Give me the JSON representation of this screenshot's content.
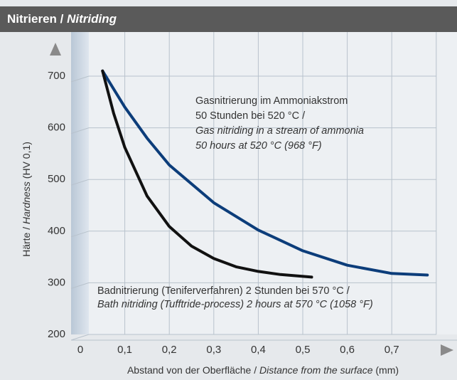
{
  "chart_data": {
    "type": "line",
    "title": {
      "de": "Nitrieren /",
      "en": "Nitriding"
    },
    "x_label": {
      "de": "Abstand von der Oberfläche /",
      "en": "Distance from the surface",
      "unit": "(mm)"
    },
    "y_label": {
      "de": "Härte /",
      "en": "Hardness",
      "unit": "(HV 0,1)"
    },
    "xlim": [
      0,
      0.8
    ],
    "ylim": [
      200,
      700
    ],
    "xticks": [
      0,
      {
        "value": 0.1,
        "label": "0,1"
      },
      {
        "value": 0.2,
        "label": "0,2"
      },
      {
        "value": 0.3,
        "label": "0,3"
      },
      {
        "value": 0.4,
        "label": "0,4"
      },
      {
        "value": 0.5,
        "label": "0,5"
      },
      {
        "value": 0.6,
        "label": "0,6"
      },
      {
        "value": 0.7,
        "label": "0,7"
      }
    ],
    "yticks": [
      200,
      300,
      400,
      500,
      600,
      700
    ],
    "grid": true,
    "series": [
      {
        "color": "#0c3d7a",
        "x": [
          0.05,
          0.1,
          0.15,
          0.2,
          0.3,
          0.4,
          0.5,
          0.6,
          0.7,
          0.78
        ],
        "values": [
          710,
          640,
          580,
          528,
          455,
          402,
          362,
          334,
          318,
          315
        ]
      },
      {
        "color": "#111111",
        "x": [
          0.05,
          0.075,
          0.1,
          0.15,
          0.2,
          0.25,
          0.3,
          0.35,
          0.4,
          0.45,
          0.52
        ],
        "values": [
          710,
          628,
          562,
          468,
          409,
          371,
          347,
          331,
          322,
          316,
          311
        ]
      }
    ],
    "annotations": [
      {
        "lines": [
          {
            "text": "Gasnitrierung im Ammoniakstrom",
            "italic": false
          },
          {
            "text": "50 Stunden bei 520 °C /",
            "italic": false
          },
          {
            "text": "Gas nitriding in a stream of ammonia",
            "italic": true
          },
          {
            "text": "50 hours at 520 °C (968 °F)",
            "italic": true
          }
        ]
      },
      {
        "lines": [
          {
            "text": "Badnitrierung (Teniferverfahren) 2 Stunden bei 570 °C /",
            "italic": false
          },
          {
            "text": "Bath nitriding (Tufftride-process) 2 hours at 570 °C (1058 °F)",
            "italic": true
          }
        ]
      }
    ]
  }
}
